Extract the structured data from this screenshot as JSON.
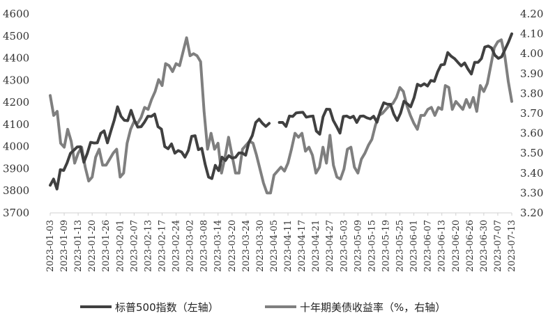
{
  "chart_data": {
    "type": "line",
    "title": "",
    "xlabel": "",
    "ylabel_left": "",
    "ylabel_right": "",
    "x_ticks": [
      "2023-01-03",
      "2023-01-09",
      "2023-01-13",
      "2023-01-20",
      "2023-01-26",
      "2023-02-01",
      "2023-02-07",
      "2023-02-13",
      "2023-02-17",
      "2023-02-24",
      "2023-03-02",
      "2023-03-08",
      "2023-03-14",
      "2023-03-20",
      "2023-03-24",
      "2023-03-30",
      "2023-04-05",
      "2023-04-11",
      "2023-04-17",
      "2023-04-21",
      "2023-04-27",
      "2023-05-03",
      "2023-05-09",
      "2023-05-15",
      "2023-05-19",
      "2023-05-25",
      "2023-06-01",
      "2023-06-07",
      "2023-06-13",
      "2023-06-20",
      "2023-06-26",
      "2023-06-30",
      "2023-07-07",
      "2023-07-13"
    ],
    "y_left": {
      "min": 3700,
      "max": 4600,
      "ticks": [
        "3700",
        "3800",
        "3900",
        "4000",
        "4100",
        "4200",
        "4300",
        "4400",
        "4500",
        "4600"
      ]
    },
    "y_right": {
      "min": 3.2,
      "max": 4.2,
      "ticks": [
        "3.20",
        "3.30",
        "3.40",
        "3.50",
        "3.60",
        "3.70",
        "3.80",
        "3.90",
        "4.00",
        "4.10",
        "4.20"
      ]
    },
    "legend_position": "bottom",
    "grid": false,
    "colors": {
      "sp500": "#404040",
      "treasury": "#7f7f7f"
    },
    "series": [
      {
        "name": "标普500指数（左轴）",
        "axis": "left",
        "values": [
          3825,
          3853,
          3808,
          3895,
          3892,
          3926,
          3969,
          3983,
          3998,
          3999,
          3929,
          3969,
          4019,
          4016,
          4017,
          4060,
          4071,
          4017,
          4070,
          4119,
          4180,
          4137,
          4119,
          4117,
          4164,
          4119,
          4088,
          4090,
          4111,
          4137,
          4136,
          4147,
          4090,
          4079,
          4000,
          3990,
          4012,
          3970,
          3982,
          3975,
          3952,
          3982,
          4046,
          4049,
          3986,
          3992,
          3919,
          3862,
          3855,
          3915,
          3891,
          3952,
          3937,
          3959,
          3948,
          3951,
          3971,
          3971,
          3961,
          4020,
          4050,
          4109,
          4124,
          4105,
          4091,
          4105,
          null,
          null,
          4109,
          4109,
          4091,
          4138,
          4136,
          4152,
          4154,
          4155,
          4133,
          4136,
          4138,
          4070,
          4056,
          4135,
          4169,
          4168,
          4119,
          4091,
          4061,
          4136,
          4138,
          4130,
          4137,
          4109,
          4137,
          4138,
          4130,
          4125,
          4137,
          4110,
          4160,
          4198,
          4192,
          4191,
          4146,
          4118,
          4151,
          4205,
          4193,
          4180,
          4221,
          4282,
          4274,
          4284,
          4274,
          4299,
          4295,
          4338,
          4369,
          4372,
          4425,
          4409,
          4398,
          4381,
          4365,
          4378,
          4350,
          4328,
          4381,
          4381,
          4398,
          4450,
          4455,
          4446,
          4413,
          4399,
          4406,
          4439,
          4472,
          4510
        ]
      },
      {
        "name": "十年期美债收益率（%，右轴）",
        "axis": "right",
        "values": [
          3.79,
          3.69,
          3.71,
          3.55,
          3.53,
          3.62,
          3.56,
          3.45,
          3.5,
          3.53,
          3.43,
          3.36,
          3.38,
          3.48,
          3.52,
          3.44,
          3.44,
          3.47,
          3.5,
          3.52,
          3.38,
          3.4,
          3.55,
          3.62,
          3.66,
          3.65,
          3.68,
          3.73,
          3.72,
          3.77,
          3.81,
          3.87,
          3.84,
          3.95,
          3.94,
          3.91,
          3.95,
          3.94,
          4.01,
          4.08,
          3.99,
          4.0,
          3.99,
          3.96,
          3.71,
          3.52,
          3.6,
          3.52,
          3.55,
          3.4,
          3.48,
          3.58,
          3.49,
          3.4,
          3.4,
          3.52,
          3.54,
          3.56,
          3.55,
          3.49,
          3.42,
          3.35,
          3.3,
          3.3,
          3.39,
          3.41,
          3.43,
          3.41,
          3.45,
          3.52,
          3.6,
          3.58,
          3.6,
          3.51,
          3.53,
          3.49,
          3.4,
          3.43,
          3.53,
          3.45,
          3.59,
          3.44,
          3.38,
          3.37,
          3.42,
          3.52,
          3.53,
          3.43,
          3.4,
          3.47,
          3.5,
          3.54,
          3.57,
          3.64,
          3.69,
          3.7,
          3.72,
          3.74,
          3.75,
          3.78,
          3.83,
          3.81,
          3.74,
          3.69,
          3.65,
          3.62,
          3.69,
          3.69,
          3.72,
          3.73,
          3.69,
          3.73,
          3.72,
          3.84,
          3.83,
          3.72,
          3.76,
          3.74,
          3.72,
          3.77,
          3.73,
          3.78,
          3.71,
          3.84,
          3.81,
          3.85,
          3.94,
          4.03,
          4.06,
          4.07,
          3.99,
          3.86,
          3.76
        ]
      }
    ]
  }
}
